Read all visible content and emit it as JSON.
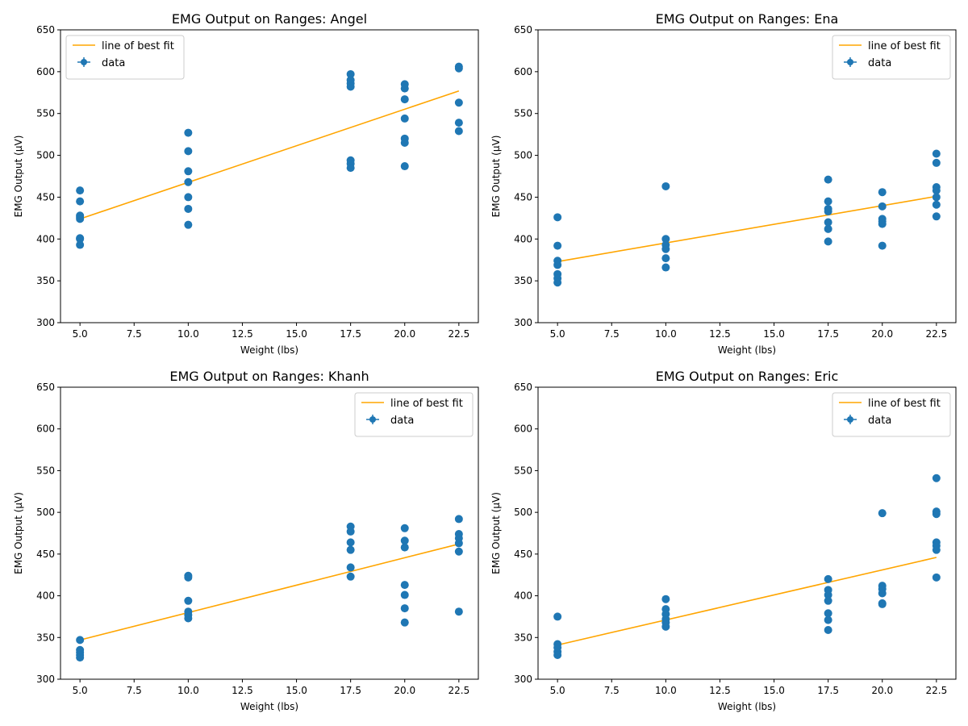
{
  "figure": {
    "background": "#ffffff"
  },
  "style": {
    "data_color": "#1f77b4",
    "fit_color": "#ffa500"
  },
  "legend_labels": {
    "fit": "line of best fit",
    "data": "data"
  },
  "chart_data": [
    {
      "type": "scatter",
      "title": "EMG Output on Ranges: Angel",
      "xlabel": "Weight (lbs)",
      "ylabel": "EMG Output (μV)",
      "xlim": [
        4.1,
        23.4
      ],
      "ylim": [
        300,
        650
      ],
      "xticks": [
        "5.0",
        "7.5",
        "10.0",
        "12.5",
        "15.0",
        "17.5",
        "20.0",
        "22.5"
      ],
      "yticks": [
        "300",
        "350",
        "400",
        "450",
        "500",
        "550",
        "600",
        "650"
      ],
      "grid": false,
      "legend_position": "top-left",
      "series": [
        {
          "name": "data",
          "points": [
            [
              5,
              458
            ],
            [
              5,
              445
            ],
            [
              5,
              428
            ],
            [
              5,
              426
            ],
            [
              5,
              424
            ],
            [
              5,
              401
            ],
            [
              5,
              400
            ],
            [
              5,
              393
            ],
            [
              10,
              527
            ],
            [
              10,
              505
            ],
            [
              10,
              481
            ],
            [
              10,
              468
            ],
            [
              10,
              450
            ],
            [
              10,
              436
            ],
            [
              10,
              417
            ],
            [
              17.5,
              597
            ],
            [
              17.5,
              590
            ],
            [
              17.5,
              586
            ],
            [
              17.5,
              582
            ],
            [
              17.5,
              494
            ],
            [
              17.5,
              490
            ],
            [
              17.5,
              485
            ],
            [
              20,
              585
            ],
            [
              20,
              580
            ],
            [
              20,
              567
            ],
            [
              20,
              544
            ],
            [
              20,
              520
            ],
            [
              20,
              515
            ],
            [
              20,
              487
            ],
            [
              22.5,
              606
            ],
            [
              22.5,
              604
            ],
            [
              22.5,
              563
            ],
            [
              22.5,
              539
            ],
            [
              22.5,
              529
            ]
          ]
        },
        {
          "name": "line of best fit",
          "x": [
            5,
            22.5
          ],
          "y": [
            424,
            577
          ]
        }
      ]
    },
    {
      "type": "scatter",
      "title": "EMG Output on Ranges: Ena",
      "xlabel": "Weight (lbs)",
      "ylabel": "EMG Output (μV)",
      "xlim": [
        4.1,
        23.4
      ],
      "ylim": [
        300,
        650
      ],
      "xticks": [
        "5.0",
        "7.5",
        "10.0",
        "12.5",
        "15.0",
        "17.5",
        "20.0",
        "22.5"
      ],
      "yticks": [
        "300",
        "350",
        "400",
        "450",
        "500",
        "550",
        "600",
        "650"
      ],
      "grid": false,
      "legend_position": "top-right",
      "series": [
        {
          "name": "data",
          "points": [
            [
              5,
              426
            ],
            [
              5,
              392
            ],
            [
              5,
              374
            ],
            [
              5,
              369
            ],
            [
              5,
              358
            ],
            [
              5,
              353
            ],
            [
              5,
              348
            ],
            [
              10,
              463
            ],
            [
              10,
              400
            ],
            [
              10,
              393
            ],
            [
              10,
              388
            ],
            [
              10,
              377
            ],
            [
              10,
              366
            ],
            [
              17.5,
              471
            ],
            [
              17.5,
              445
            ],
            [
              17.5,
              436
            ],
            [
              17.5,
              433
            ],
            [
              17.5,
              420
            ],
            [
              17.5,
              412
            ],
            [
              17.5,
              397
            ],
            [
              20,
              456
            ],
            [
              20,
              439
            ],
            [
              20,
              424
            ],
            [
              20,
              421
            ],
            [
              20,
              418
            ],
            [
              20,
              392
            ],
            [
              22.5,
              502
            ],
            [
              22.5,
              491
            ],
            [
              22.5,
              462
            ],
            [
              22.5,
              458
            ],
            [
              22.5,
              450
            ],
            [
              22.5,
              441
            ],
            [
              22.5,
              427
            ]
          ]
        },
        {
          "name": "line of best fit",
          "x": [
            5,
            22.5
          ],
          "y": [
            373,
            451
          ]
        }
      ]
    },
    {
      "type": "scatter",
      "title": "EMG Output on Ranges: Khanh",
      "xlabel": "Weight (lbs)",
      "ylabel": "EMG Output (μV)",
      "xlim": [
        4.1,
        23.4
      ],
      "ylim": [
        300,
        650
      ],
      "xticks": [
        "5.0",
        "7.5",
        "10.0",
        "12.5",
        "15.0",
        "17.5",
        "20.0",
        "22.5"
      ],
      "yticks": [
        "300",
        "350",
        "400",
        "450",
        "500",
        "550",
        "600",
        "650"
      ],
      "grid": false,
      "legend_position": "top-right",
      "series": [
        {
          "name": "data",
          "points": [
            [
              5,
              347
            ],
            [
              5,
              335
            ],
            [
              5,
              332
            ],
            [
              5,
              329
            ],
            [
              5,
              326
            ],
            [
              10,
              424
            ],
            [
              10,
              422
            ],
            [
              10,
              394
            ],
            [
              10,
              381
            ],
            [
              10,
              377
            ],
            [
              10,
              373
            ],
            [
              17.5,
              483
            ],
            [
              17.5,
              477
            ],
            [
              17.5,
              464
            ],
            [
              17.5,
              455
            ],
            [
              17.5,
              434
            ],
            [
              17.5,
              423
            ],
            [
              20,
              481
            ],
            [
              20,
              466
            ],
            [
              20,
              458
            ],
            [
              20,
              413
            ],
            [
              20,
              401
            ],
            [
              20,
              385
            ],
            [
              20,
              368
            ],
            [
              22.5,
              492
            ],
            [
              22.5,
              474
            ],
            [
              22.5,
              469
            ],
            [
              22.5,
              463
            ],
            [
              22.5,
              453
            ],
            [
              22.5,
              381
            ]
          ]
        },
        {
          "name": "line of best fit",
          "x": [
            5,
            22.5
          ],
          "y": [
            347,
            462
          ]
        }
      ]
    },
    {
      "type": "scatter",
      "title": "EMG Output on Ranges: Eric",
      "xlabel": "Weight (lbs)",
      "ylabel": "EMG Output (μV)",
      "xlim": [
        4.1,
        23.4
      ],
      "ylim": [
        300,
        650
      ],
      "xticks": [
        "5.0",
        "7.5",
        "10.0",
        "12.5",
        "15.0",
        "17.5",
        "20.0",
        "22.5"
      ],
      "yticks": [
        "300",
        "350",
        "400",
        "450",
        "500",
        "550",
        "600",
        "650"
      ],
      "grid": false,
      "legend_position": "top-right",
      "series": [
        {
          "name": "data",
          "points": [
            [
              5,
              375
            ],
            [
              5,
              342
            ],
            [
              5,
              338
            ],
            [
              5,
              333
            ],
            [
              5,
              329
            ],
            [
              10,
              396
            ],
            [
              10,
              384
            ],
            [
              10,
              378
            ],
            [
              10,
              372
            ],
            [
              10,
              368
            ],
            [
              10,
              363
            ],
            [
              17.5,
              420
            ],
            [
              17.5,
              407
            ],
            [
              17.5,
              401
            ],
            [
              17.5,
              394
            ],
            [
              17.5,
              379
            ],
            [
              17.5,
              371
            ],
            [
              17.5,
              359
            ],
            [
              20,
              499
            ],
            [
              20,
              412
            ],
            [
              20,
              408
            ],
            [
              20,
              403
            ],
            [
              20,
              391
            ],
            [
              20,
              390
            ],
            [
              22.5,
              541
            ],
            [
              22.5,
              501
            ],
            [
              22.5,
              498
            ],
            [
              22.5,
              464
            ],
            [
              22.5,
              460
            ],
            [
              22.5,
              455
            ],
            [
              22.5,
              422
            ]
          ]
        },
        {
          "name": "line of best fit",
          "x": [
            5,
            22.5
          ],
          "y": [
            341,
            446
          ]
        }
      ]
    }
  ]
}
